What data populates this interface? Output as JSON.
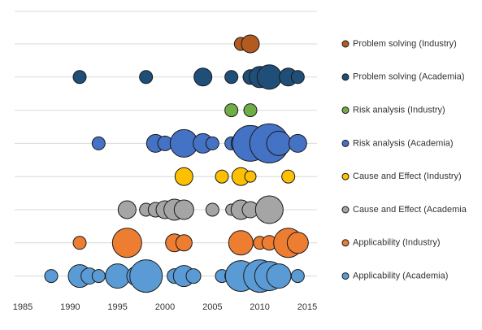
{
  "chart_data": {
    "type": "bubble",
    "xlim": [
      1985,
      2015
    ],
    "xticks": [
      1985,
      1990,
      1995,
      2000,
      2005,
      2010,
      2015
    ],
    "series": [
      {
        "name": "Problem solving (Industry)",
        "color": "#b35a1f",
        "x": [
          2008,
          2009
        ],
        "sizes": [
          8,
          11
        ]
      },
      {
        "name": "Problem solving (Academia)",
        "color": "#1f4e79",
        "x": [
          1991,
          1998,
          2004,
          2007,
          2009,
          2010,
          2011,
          2013,
          2014
        ],
        "sizes": [
          8,
          8,
          11,
          8,
          9,
          13,
          15,
          11,
          8
        ]
      },
      {
        "name": "Risk analysis (Industry)",
        "color": "#70ad47",
        "x": [
          2007,
          2009
        ],
        "sizes": [
          8,
          8
        ]
      },
      {
        "name": "Risk analysis (Academia)",
        "color": "#4472c4",
        "x": [
          1993,
          1999,
          2000,
          2002,
          2004,
          2005,
          2007,
          2008,
          2009,
          2011,
          2012,
          2014
        ],
        "sizes": [
          8,
          11,
          9,
          17,
          12,
          8,
          8,
          12,
          22,
          24,
          15,
          11
        ]
      },
      {
        "name": "Cause and Effect (Industry)",
        "color": "#ffc000",
        "x": [
          2002,
          2006,
          2008,
          2009,
          2013
        ],
        "sizes": [
          11,
          8,
          11,
          7,
          8
        ]
      },
      {
        "name": "Cause and Effect (Academia",
        "color": "#a5a5a5",
        "x": [
          1996,
          1998,
          1999,
          2000,
          2001,
          2002,
          2005,
          2007,
          2008,
          2009,
          2011
        ],
        "sizes": [
          11,
          8,
          9,
          11,
          13,
          12,
          8,
          7,
          12,
          10,
          17
        ]
      },
      {
        "name": "Applicability (Industry)",
        "color": "#ed7d31",
        "x": [
          1991,
          1996,
          2001,
          2002,
          2008,
          2010,
          2011,
          2013,
          2014
        ],
        "sizes": [
          8,
          18,
          11,
          10,
          15,
          8,
          9,
          18,
          13
        ]
      },
      {
        "name": "Applicability (Academia)",
        "color": "#5b9bd5",
        "x": [
          1988,
          1991,
          1992,
          1993,
          1995,
          1997,
          1998,
          2001,
          2002,
          2003,
          2006,
          2007,
          2008,
          2010,
          2011,
          2012,
          2014
        ],
        "sizes": [
          8,
          14,
          10,
          8,
          15,
          12,
          20,
          9,
          13,
          9,
          8,
          8,
          19,
          20,
          18,
          15,
          8
        ]
      }
    ]
  }
}
